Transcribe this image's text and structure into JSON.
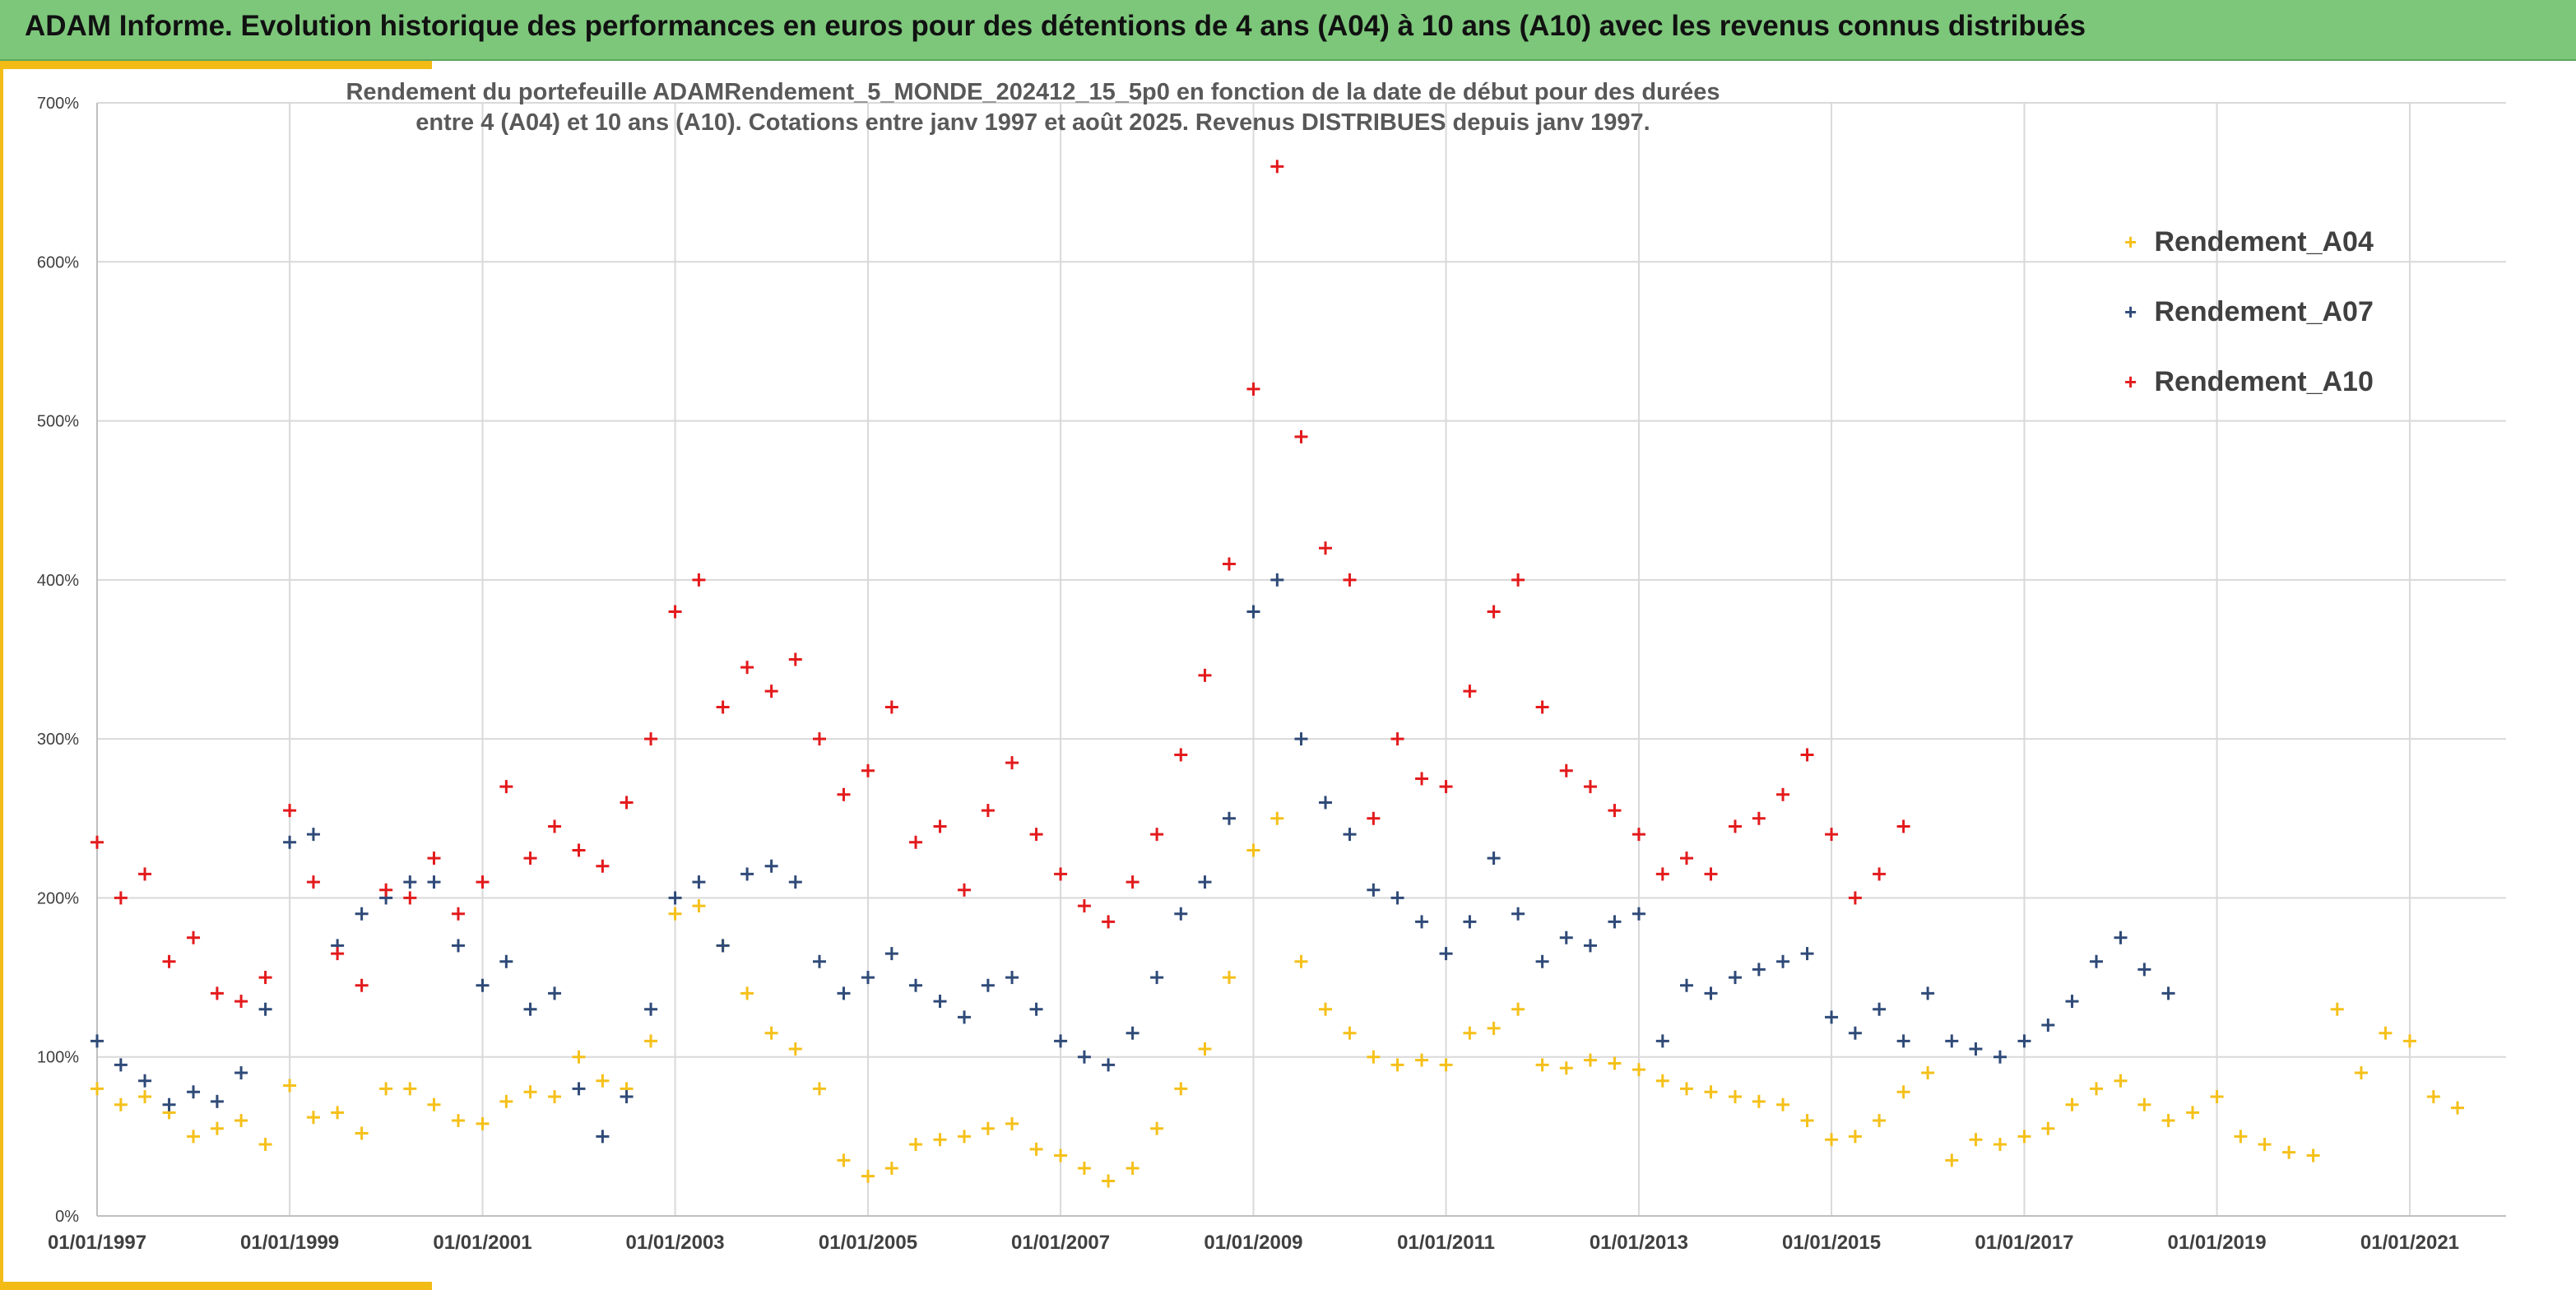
{
  "header": {
    "title": "ADAM Informe. Evolution historique des performances en euros pour des détentions de 4 ans (A04) à 10 ans (A10) avec les revenus connus distribués"
  },
  "chart_data": {
    "type": "scatter",
    "title_line1": "Rendement du portefeuille ADAMRendement_5_MONDE_202412_15_5p0  en fonction de la date de début pour des durées",
    "title_line2": "entre 4 (A04) et 10 ans (A10). Cotations entre janv 1997 et août 2025. Revenus DISTRIBUES depuis janv 1997.",
    "xlabel": "",
    "ylabel": "",
    "x_range": [
      "1997-01-01",
      "2022-01-01"
    ],
    "x_ticks": [
      "01/01/1997",
      "01/01/1999",
      "01/01/2001",
      "01/01/2003",
      "01/01/2005",
      "01/01/2007",
      "01/01/2009",
      "01/01/2011",
      "01/01/2013",
      "01/01/2015",
      "01/01/2017",
      "01/01/2019",
      "01/01/2021"
    ],
    "y_range": [
      0,
      700
    ],
    "y_ticks": [
      "0%",
      "100%",
      "200%",
      "300%",
      "400%",
      "500%",
      "600%",
      "700%"
    ],
    "y_unit": "%",
    "grid": true,
    "legend_position": "top-right",
    "series": [
      {
        "name": "Rendement_A04",
        "color": "#f5c01a",
        "marker": "+",
        "points": [
          [
            "1997-01",
            80
          ],
          [
            "1997-04",
            70
          ],
          [
            "1997-07",
            75
          ],
          [
            "1997-10",
            65
          ],
          [
            "1998-01",
            50
          ],
          [
            "1998-04",
            55
          ],
          [
            "1998-07",
            60
          ],
          [
            "1998-10",
            45
          ],
          [
            "1999-01",
            82
          ],
          [
            "1999-04",
            62
          ],
          [
            "1999-07",
            65
          ],
          [
            "1999-10",
            52
          ],
          [
            "2000-01",
            80
          ],
          [
            "2000-04",
            80
          ],
          [
            "2000-07",
            70
          ],
          [
            "2000-10",
            60
          ],
          [
            "2001-01",
            58
          ],
          [
            "2001-04",
            72
          ],
          [
            "2001-07",
            78
          ],
          [
            "2001-10",
            75
          ],
          [
            "2002-01",
            100
          ],
          [
            "2002-04",
            85
          ],
          [
            "2002-07",
            80
          ],
          [
            "2002-10",
            110
          ],
          [
            "2003-01",
            190
          ],
          [
            "2003-04",
            195
          ],
          [
            "2003-07",
            170
          ],
          [
            "2003-10",
            140
          ],
          [
            "2004-01",
            115
          ],
          [
            "2004-04",
            105
          ],
          [
            "2004-07",
            80
          ],
          [
            "2004-10",
            35
          ],
          [
            "2005-01",
            25
          ],
          [
            "2005-04",
            30
          ],
          [
            "2005-07",
            45
          ],
          [
            "2005-10",
            48
          ],
          [
            "2006-01",
            50
          ],
          [
            "2006-04",
            55
          ],
          [
            "2006-07",
            58
          ],
          [
            "2006-10",
            42
          ],
          [
            "2007-01",
            38
          ],
          [
            "2007-04",
            30
          ],
          [
            "2007-07",
            22
          ],
          [
            "2007-10",
            30
          ],
          [
            "2008-01",
            55
          ],
          [
            "2008-04",
            80
          ],
          [
            "2008-07",
            105
          ],
          [
            "2008-10",
            150
          ],
          [
            "2009-01",
            230
          ],
          [
            "2009-04",
            250
          ],
          [
            "2009-07",
            160
          ],
          [
            "2009-10",
            130
          ],
          [
            "2010-01",
            115
          ],
          [
            "2010-04",
            100
          ],
          [
            "2010-07",
            95
          ],
          [
            "2010-10",
            98
          ],
          [
            "2011-01",
            95
          ],
          [
            "2011-04",
            115
          ],
          [
            "2011-07",
            118
          ],
          [
            "2011-10",
            130
          ],
          [
            "2012-01",
            95
          ],
          [
            "2012-04",
            93
          ],
          [
            "2012-07",
            98
          ],
          [
            "2012-10",
            96
          ],
          [
            "2013-01",
            92
          ],
          [
            "2013-04",
            85
          ],
          [
            "2013-07",
            80
          ],
          [
            "2013-10",
            78
          ],
          [
            "2014-01",
            75
          ],
          [
            "2014-04",
            72
          ],
          [
            "2014-07",
            70
          ],
          [
            "2014-10",
            60
          ],
          [
            "2015-01",
            48
          ],
          [
            "2015-04",
            50
          ],
          [
            "2015-07",
            60
          ],
          [
            "2015-10",
            78
          ],
          [
            "2016-01",
            90
          ],
          [
            "2016-04",
            35
          ],
          [
            "2016-07",
            48
          ],
          [
            "2016-10",
            45
          ],
          [
            "2017-01",
            50
          ],
          [
            "2017-04",
            55
          ],
          [
            "2017-07",
            70
          ],
          [
            "2017-10",
            80
          ],
          [
            "2018-01",
            85
          ],
          [
            "2018-04",
            70
          ],
          [
            "2018-07",
            60
          ],
          [
            "2018-10",
            65
          ],
          [
            "2019-01",
            75
          ],
          [
            "2019-04",
            50
          ],
          [
            "2019-07",
            45
          ],
          [
            "2019-10",
            40
          ],
          [
            "2020-01",
            38
          ],
          [
            "2020-04",
            130
          ],
          [
            "2020-07",
            90
          ],
          [
            "2020-10",
            115
          ],
          [
            "2021-01",
            110
          ],
          [
            "2021-04",
            75
          ],
          [
            "2021-07",
            68
          ]
        ]
      },
      {
        "name": "Rendement_A07",
        "color": "#2f4a78",
        "marker": "+",
        "points": [
          [
            "1997-01",
            110
          ],
          [
            "1997-04",
            95
          ],
          [
            "1997-07",
            85
          ],
          [
            "1997-10",
            70
          ],
          [
            "1998-01",
            78
          ],
          [
            "1998-04",
            72
          ],
          [
            "1998-07",
            90
          ],
          [
            "1998-10",
            130
          ],
          [
            "1999-01",
            235
          ],
          [
            "1999-04",
            240
          ],
          [
            "1999-07",
            170
          ],
          [
            "1999-10",
            190
          ],
          [
            "2000-01",
            200
          ],
          [
            "2000-04",
            210
          ],
          [
            "2000-07",
            210
          ],
          [
            "2000-10",
            170
          ],
          [
            "2001-01",
            145
          ],
          [
            "2001-04",
            160
          ],
          [
            "2001-07",
            130
          ],
          [
            "2001-10",
            140
          ],
          [
            "2002-01",
            80
          ],
          [
            "2002-04",
            50
          ],
          [
            "2002-07",
            75
          ],
          [
            "2002-10",
            130
          ],
          [
            "2003-01",
            200
          ],
          [
            "2003-04",
            210
          ],
          [
            "2003-07",
            170
          ],
          [
            "2003-10",
            215
          ],
          [
            "2004-01",
            220
          ],
          [
            "2004-04",
            210
          ],
          [
            "2004-07",
            160
          ],
          [
            "2004-10",
            140
          ],
          [
            "2005-01",
            150
          ],
          [
            "2005-04",
            165
          ],
          [
            "2005-07",
            145
          ],
          [
            "2005-10",
            135
          ],
          [
            "2006-01",
            125
          ],
          [
            "2006-04",
            145
          ],
          [
            "2006-07",
            150
          ],
          [
            "2006-10",
            130
          ],
          [
            "2007-01",
            110
          ],
          [
            "2007-04",
            100
          ],
          [
            "2007-07",
            95
          ],
          [
            "2007-10",
            115
          ],
          [
            "2008-01",
            150
          ],
          [
            "2008-04",
            190
          ],
          [
            "2008-07",
            210
          ],
          [
            "2008-10",
            250
          ],
          [
            "2009-01",
            380
          ],
          [
            "2009-04",
            400
          ],
          [
            "2009-07",
            300
          ],
          [
            "2009-10",
            260
          ],
          [
            "2010-01",
            240
          ],
          [
            "2010-04",
            205
          ],
          [
            "2010-07",
            200
          ],
          [
            "2010-10",
            185
          ],
          [
            "2011-01",
            165
          ],
          [
            "2011-04",
            185
          ],
          [
            "2011-07",
            225
          ],
          [
            "2011-10",
            190
          ],
          [
            "2012-01",
            160
          ],
          [
            "2012-04",
            175
          ],
          [
            "2012-07",
            170
          ],
          [
            "2012-10",
            185
          ],
          [
            "2013-01",
            190
          ],
          [
            "2013-04",
            110
          ],
          [
            "2013-07",
            145
          ],
          [
            "2013-10",
            140
          ],
          [
            "2014-01",
            150
          ],
          [
            "2014-04",
            155
          ],
          [
            "2014-07",
            160
          ],
          [
            "2014-10",
            165
          ],
          [
            "2015-01",
            125
          ],
          [
            "2015-04",
            115
          ],
          [
            "2015-07",
            130
          ],
          [
            "2015-10",
            110
          ],
          [
            "2016-01",
            140
          ],
          [
            "2016-04",
            110
          ],
          [
            "2016-07",
            105
          ],
          [
            "2016-10",
            100
          ],
          [
            "2017-01",
            110
          ],
          [
            "2017-04",
            120
          ],
          [
            "2017-07",
            135
          ],
          [
            "2017-10",
            160
          ],
          [
            "2018-01",
            175
          ],
          [
            "2018-04",
            155
          ],
          [
            "2018-07",
            140
          ]
        ]
      },
      {
        "name": "Rendement_A10",
        "color": "#e31a1c",
        "marker": "+",
        "points": [
          [
            "1997-01",
            235
          ],
          [
            "1997-04",
            200
          ],
          [
            "1997-07",
            215
          ],
          [
            "1997-10",
            160
          ],
          [
            "1998-01",
            175
          ],
          [
            "1998-04",
            140
          ],
          [
            "1998-07",
            135
          ],
          [
            "1998-10",
            150
          ],
          [
            "1999-01",
            255
          ],
          [
            "1999-04",
            210
          ],
          [
            "1999-07",
            165
          ],
          [
            "1999-10",
            145
          ],
          [
            "2000-01",
            205
          ],
          [
            "2000-04",
            200
          ],
          [
            "2000-07",
            225
          ],
          [
            "2000-10",
            190
          ],
          [
            "2001-01",
            210
          ],
          [
            "2001-04",
            270
          ],
          [
            "2001-07",
            225
          ],
          [
            "2001-10",
            245
          ],
          [
            "2002-01",
            230
          ],
          [
            "2002-04",
            220
          ],
          [
            "2002-07",
            260
          ],
          [
            "2002-10",
            300
          ],
          [
            "2003-01",
            380
          ],
          [
            "2003-04",
            400
          ],
          [
            "2003-07",
            320
          ],
          [
            "2003-10",
            345
          ],
          [
            "2004-01",
            330
          ],
          [
            "2004-04",
            350
          ],
          [
            "2004-07",
            300
          ],
          [
            "2004-10",
            265
          ],
          [
            "2005-01",
            280
          ],
          [
            "2005-04",
            320
          ],
          [
            "2005-07",
            235
          ],
          [
            "2005-10",
            245
          ],
          [
            "2006-01",
            205
          ],
          [
            "2006-04",
            255
          ],
          [
            "2006-07",
            285
          ],
          [
            "2006-10",
            240
          ],
          [
            "2007-01",
            215
          ],
          [
            "2007-04",
            195
          ],
          [
            "2007-07",
            185
          ],
          [
            "2007-10",
            210
          ],
          [
            "2008-01",
            240
          ],
          [
            "2008-04",
            290
          ],
          [
            "2008-07",
            340
          ],
          [
            "2008-10",
            410
          ],
          [
            "2009-01",
            520
          ],
          [
            "2009-04",
            660
          ],
          [
            "2009-07",
            490
          ],
          [
            "2009-10",
            420
          ],
          [
            "2010-01",
            400
          ],
          [
            "2010-04",
            250
          ],
          [
            "2010-07",
            300
          ],
          [
            "2010-10",
            275
          ],
          [
            "2011-01",
            270
          ],
          [
            "2011-04",
            330
          ],
          [
            "2011-07",
            380
          ],
          [
            "2011-10",
            400
          ],
          [
            "2012-01",
            320
          ],
          [
            "2012-04",
            280
          ],
          [
            "2012-07",
            270
          ],
          [
            "2012-10",
            255
          ],
          [
            "2013-01",
            240
          ],
          [
            "2013-04",
            215
          ],
          [
            "2013-07",
            225
          ],
          [
            "2013-10",
            215
          ],
          [
            "2014-01",
            245
          ],
          [
            "2014-04",
            250
          ],
          [
            "2014-07",
            265
          ],
          [
            "2014-10",
            290
          ],
          [
            "2015-01",
            240
          ],
          [
            "2015-04",
            200
          ],
          [
            "2015-07",
            215
          ],
          [
            "2015-10",
            245
          ]
        ]
      }
    ]
  }
}
